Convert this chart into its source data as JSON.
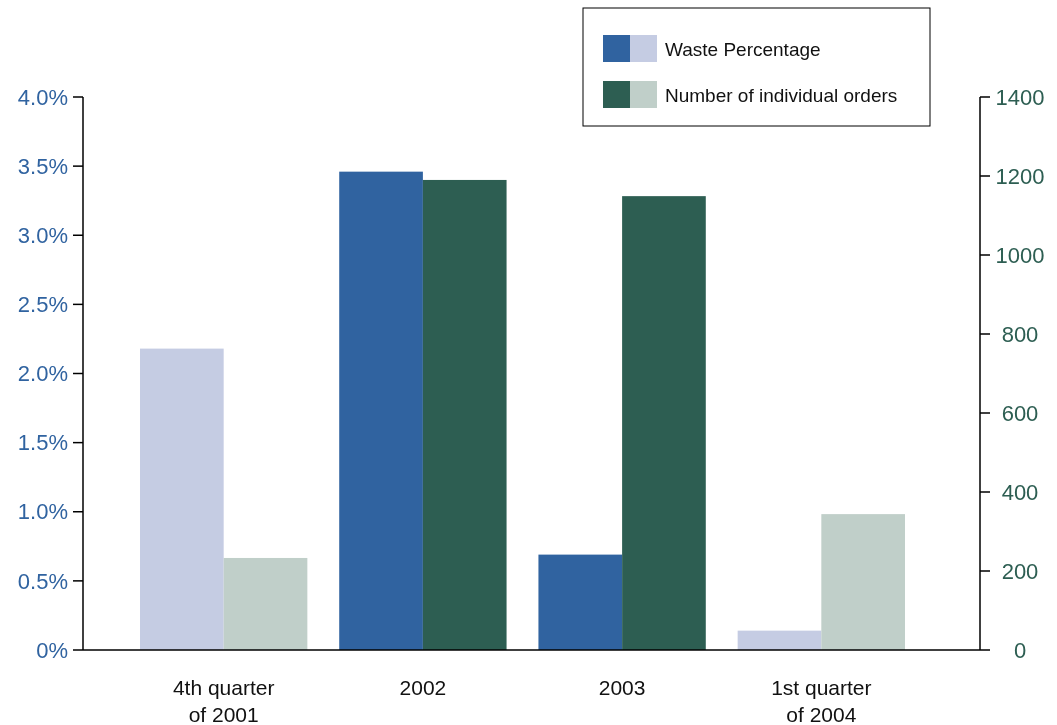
{
  "chart_data": {
    "type": "bar",
    "categories": [
      "4th quarter of 2001",
      "2002",
      "2003",
      "1st quarter of 2004"
    ],
    "series": [
      {
        "name": "Waste Percentage",
        "color": "#3063a0",
        "colors": [
          "#c5cce3",
          "#3063a0",
          "#3063a0",
          "#c5cce3"
        ],
        "values": [
          2.18,
          3.46,
          0.69,
          0.14
        ]
      },
      {
        "name": "Number of individual orders",
        "color": "#2d5e52",
        "colors": [
          "#c0cfc9",
          "#2d5e52",
          "#2d5e52",
          "#c0cfc9"
        ],
        "values": [
          233,
          1190,
          1149,
          344
        ],
        "axis": "y2"
      }
    ],
    "ylim": [
      0,
      4
    ],
    "yticks": [
      {
        "value": 0,
        "label": "0%"
      },
      {
        "value": 0.5,
        "label": "0.5%"
      },
      {
        "value": 1,
        "label": "1.0%"
      },
      {
        "value": 1.5,
        "label": "1.5%"
      },
      {
        "value": 2,
        "label": "2.0%"
      },
      {
        "value": 2.5,
        "label": "2.5%"
      },
      {
        "value": 3,
        "label": "3.0%"
      },
      {
        "value": 3.5,
        "label": "3.5%"
      },
      {
        "value": 4,
        "label": "4.0%"
      }
    ],
    "y2lim": [
      0,
      1400
    ],
    "y2ticks": [
      0,
      200,
      400,
      600,
      800,
      1000,
      1200,
      1400
    ],
    "legend": "top right",
    "grid": false
  }
}
